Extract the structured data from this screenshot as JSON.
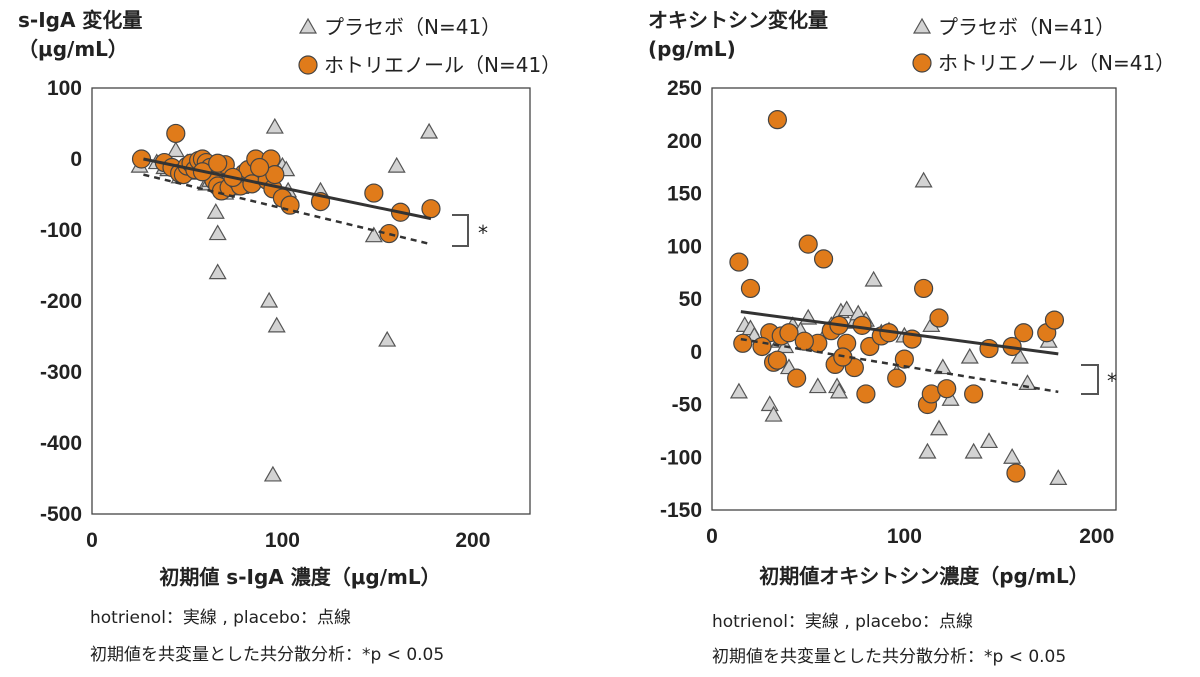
{
  "chart_data": [
    {
      "type": "scatter",
      "title": "s-IgA 変化量",
      "ylabel_line2": "（μg/mL）",
      "xlabel": "初期値 s-IgA 濃度（μg/mL）",
      "xlim": [
        0,
        230
      ],
      "ylim": [
        -500,
        100
      ],
      "xticks": [
        0,
        100,
        200
      ],
      "yticks": [
        100,
        0,
        -100,
        -200,
        -300,
        -400,
        -500
      ],
      "legend": [
        {
          "marker": "triangle",
          "label": "プラセボ（N=41）"
        },
        {
          "marker": "circle",
          "label": "ホトリエノール（N=41）"
        }
      ],
      "series": [
        {
          "name": "プラセボ",
          "marker": "triangle",
          "color": "#d3d3d3",
          "points": [
            [
              25,
              -10
            ],
            [
              34,
              -5
            ],
            [
              40,
              -15
            ],
            [
              44,
              12
            ],
            [
              46,
              -25
            ],
            [
              50,
              -5
            ],
            [
              52,
              -20
            ],
            [
              55,
              -2
            ],
            [
              57,
              -8
            ],
            [
              58,
              -15
            ],
            [
              60,
              -35
            ],
            [
              62,
              -30
            ],
            [
              63,
              -18
            ],
            [
              65,
              -75
            ],
            [
              66,
              -105
            ],
            [
              66,
              -160
            ],
            [
              68,
              -20
            ],
            [
              70,
              -48
            ],
            [
              72,
              -30
            ],
            [
              74,
              -42
            ],
            [
              78,
              -40
            ],
            [
              80,
              -15
            ],
            [
              85,
              -28
            ],
            [
              88,
              -20
            ],
            [
              93,
              -200
            ],
            [
              95,
              -445
            ],
            [
              96,
              45
            ],
            [
              97,
              -235
            ],
            [
              100,
              -10
            ],
            [
              102,
              -15
            ],
            [
              103,
              -45
            ],
            [
              120,
              -45
            ],
            [
              148,
              -108
            ],
            [
              155,
              -255
            ],
            [
              160,
              -10
            ],
            [
              177,
              38
            ],
            [
              83,
              -35
            ],
            [
              58,
              -10
            ],
            [
              48,
              -18
            ],
            [
              38,
              -12
            ],
            [
              88,
              -25
            ]
          ]
        },
        {
          "name": "ホトリエノール",
          "marker": "circle",
          "color": "#e07b1a",
          "points": [
            [
              26,
              0
            ],
            [
              38,
              -5
            ],
            [
              42,
              -12
            ],
            [
              44,
              36
            ],
            [
              46,
              -20
            ],
            [
              48,
              -22
            ],
            [
              50,
              -10
            ],
            [
              52,
              -6
            ],
            [
              54,
              -15
            ],
            [
              56,
              -2
            ],
            [
              58,
              0
            ],
            [
              60,
              -5
            ],
            [
              62,
              -12
            ],
            [
              63,
              -20
            ],
            [
              64,
              -30
            ],
            [
              66,
              -38
            ],
            [
              68,
              -45
            ],
            [
              69,
              -12
            ],
            [
              70,
              -8
            ],
            [
              72,
              -40
            ],
            [
              76,
              -30
            ],
            [
              78,
              -38
            ],
            [
              80,
              -20
            ],
            [
              82,
              -15
            ],
            [
              84,
              -35
            ],
            [
              86,
              0
            ],
            [
              92,
              -30
            ],
            [
              94,
              0
            ],
            [
              95,
              -42
            ],
            [
              96,
              -22
            ],
            [
              100,
              -55
            ],
            [
              104,
              -65
            ],
            [
              120,
              -60
            ],
            [
              148,
              -48
            ],
            [
              156,
              -105
            ],
            [
              162,
              -75
            ],
            [
              178,
              -70
            ],
            [
              74,
              -26
            ],
            [
              58,
              -18
            ],
            [
              88,
              -12
            ],
            [
              66,
              -6
            ]
          ]
        }
      ],
      "regression": [
        {
          "name": "hotrienol",
          "style": "solid",
          "x": [
            27,
            178
          ],
          "y": [
            0,
            -84
          ]
        },
        {
          "name": "placebo",
          "style": "dashed",
          "x": [
            27,
            178
          ],
          "y": [
            -22,
            -120
          ]
        }
      ],
      "significance": "*"
    },
    {
      "type": "scatter",
      "title": "オキシトシン変化量",
      "ylabel_line2": "(pg/mL)",
      "xlabel": "初期値オキシトシン濃度（pg/mL）",
      "xlim": [
        0,
        210
      ],
      "ylim": [
        -150,
        250
      ],
      "xticks": [
        0,
        100,
        200
      ],
      "yticks": [
        250,
        200,
        150,
        100,
        50,
        0,
        -50,
        -100,
        -150
      ],
      "legend": [
        {
          "marker": "triangle",
          "label": "プラセボ（N=41）"
        },
        {
          "marker": "circle",
          "label": "ホトリエノール（N=41）"
        }
      ],
      "series": [
        {
          "name": "プラセボ",
          "marker": "triangle",
          "color": "#d3d3d3",
          "points": [
            [
              14,
              -38
            ],
            [
              17,
              25
            ],
            [
              20,
              22
            ],
            [
              30,
              -50
            ],
            [
              32,
              -60
            ],
            [
              35,
              10
            ],
            [
              38,
              5
            ],
            [
              40,
              -15
            ],
            [
              42,
              25
            ],
            [
              50,
              32
            ],
            [
              55,
              -33
            ],
            [
              60,
              20
            ],
            [
              62,
              25
            ],
            [
              65,
              -33
            ],
            [
              66,
              -38
            ],
            [
              67,
              38
            ],
            [
              70,
              40
            ],
            [
              74,
              28
            ],
            [
              76,
              36
            ],
            [
              80,
              30
            ],
            [
              84,
              68
            ],
            [
              88,
              18
            ],
            [
              92,
              20
            ],
            [
              100,
              15
            ],
            [
              110,
              162
            ],
            [
              112,
              -95
            ],
            [
              114,
              25
            ],
            [
              118,
              -73
            ],
            [
              120,
              -15
            ],
            [
              124,
              -45
            ],
            [
              134,
              -5
            ],
            [
              136,
              -95
            ],
            [
              144,
              -85
            ],
            [
              156,
              -100
            ],
            [
              160,
              -5
            ],
            [
              164,
              -30
            ],
            [
              180,
              -120
            ],
            [
              175,
              10
            ],
            [
              96,
              -20
            ],
            [
              22,
              15
            ],
            [
              46,
              20
            ]
          ]
        },
        {
          "name": "ホトリエノール",
          "marker": "circle",
          "color": "#e07b1a",
          "points": [
            [
              14,
              85
            ],
            [
              16,
              8
            ],
            [
              20,
              60
            ],
            [
              30,
              18
            ],
            [
              32,
              -10
            ],
            [
              34,
              -8
            ],
            [
              36,
              15
            ],
            [
              40,
              18
            ],
            [
              44,
              -25
            ],
            [
              50,
              102
            ],
            [
              55,
              8
            ],
            [
              58,
              88
            ],
            [
              62,
              20
            ],
            [
              64,
              -12
            ],
            [
              66,
              25
            ],
            [
              70,
              8
            ],
            [
              74,
              -15
            ],
            [
              78,
              25
            ],
            [
              80,
              -40
            ],
            [
              82,
              5
            ],
            [
              88,
              15
            ],
            [
              92,
              18
            ],
            [
              96,
              -25
            ],
            [
              100,
              -7
            ],
            [
              110,
              60
            ],
            [
              112,
              -50
            ],
            [
              114,
              -40
            ],
            [
              118,
              32
            ],
            [
              122,
              -35
            ],
            [
              136,
              -40
            ],
            [
              144,
              3
            ],
            [
              156,
              5
            ],
            [
              158,
              -115
            ],
            [
              162,
              18
            ],
            [
              174,
              18
            ],
            [
              178,
              30
            ],
            [
              34,
              220
            ],
            [
              26,
              5
            ],
            [
              48,
              10
            ],
            [
              68,
              -5
            ],
            [
              104,
              12
            ]
          ]
        }
      ],
      "regression": [
        {
          "name": "hotrienol",
          "style": "solid",
          "x": [
            15,
            180
          ],
          "y": [
            38,
            -2
          ]
        },
        {
          "name": "placebo",
          "style": "dashed",
          "x": [
            15,
            180
          ],
          "y": [
            12,
            -38
          ]
        }
      ],
      "significance": "*"
    }
  ],
  "footnotes": [
    "hotrienol：実線 , placebo：点線",
    "初期値を共変量とした共分散分析：*p < 0.05"
  ]
}
